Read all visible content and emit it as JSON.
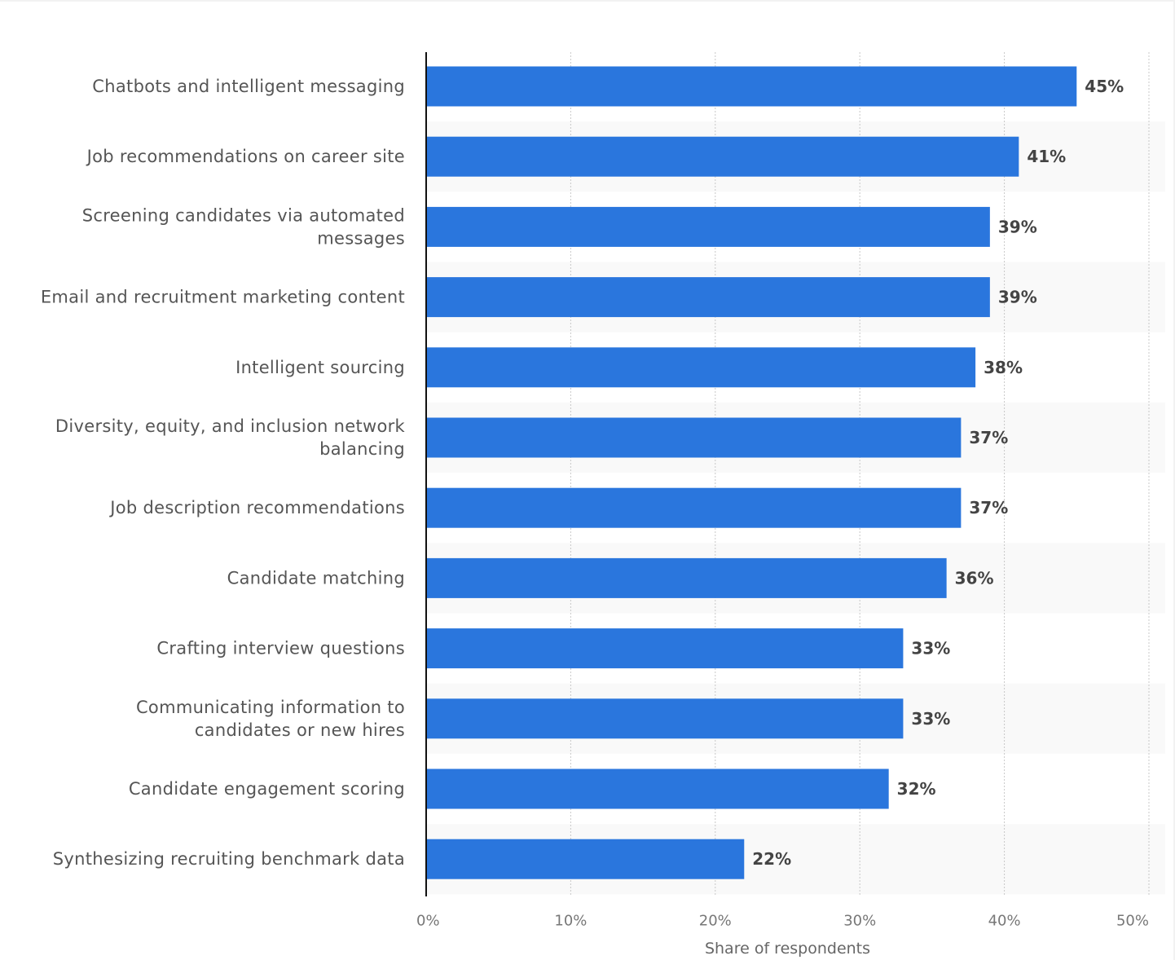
{
  "chart_data": {
    "type": "bar",
    "orientation": "horizontal",
    "categories": [
      [
        "Chatbots and intelligent messaging"
      ],
      [
        "Job recommendations on career site"
      ],
      [
        "Screening candidates via automated",
        "messages"
      ],
      [
        "Email and recruitment marketing content"
      ],
      [
        "Intelligent sourcing"
      ],
      [
        "Diversity, equity, and inclusion network",
        "balancing"
      ],
      [
        "Job description recommendations"
      ],
      [
        "Candidate matching"
      ],
      [
        "Crafting interview questions"
      ],
      [
        "Communicating information to",
        "candidates or new hires"
      ],
      [
        "Candidate engagement scoring"
      ],
      [
        "Synthesizing recruiting benchmark data"
      ]
    ],
    "values": [
      45,
      41,
      39,
      39,
      38,
      37,
      37,
      36,
      33,
      33,
      32,
      22
    ],
    "value_labels": [
      "45%",
      "41%",
      "39%",
      "39%",
      "38%",
      "37%",
      "37%",
      "36%",
      "33%",
      "33%",
      "32%",
      "22%"
    ],
    "xlim": [
      0,
      50
    ],
    "ticks": [
      0,
      10,
      20,
      30,
      40,
      50
    ],
    "tick_labels": [
      "0%",
      "10%",
      "20%",
      "30%",
      "40%",
      "50%"
    ],
    "xlabel": "Share of respondents",
    "ylabel": "",
    "title": "",
    "grid": true,
    "bar_color": "#2a76dd",
    "band_color": "#f9f9f9"
  }
}
